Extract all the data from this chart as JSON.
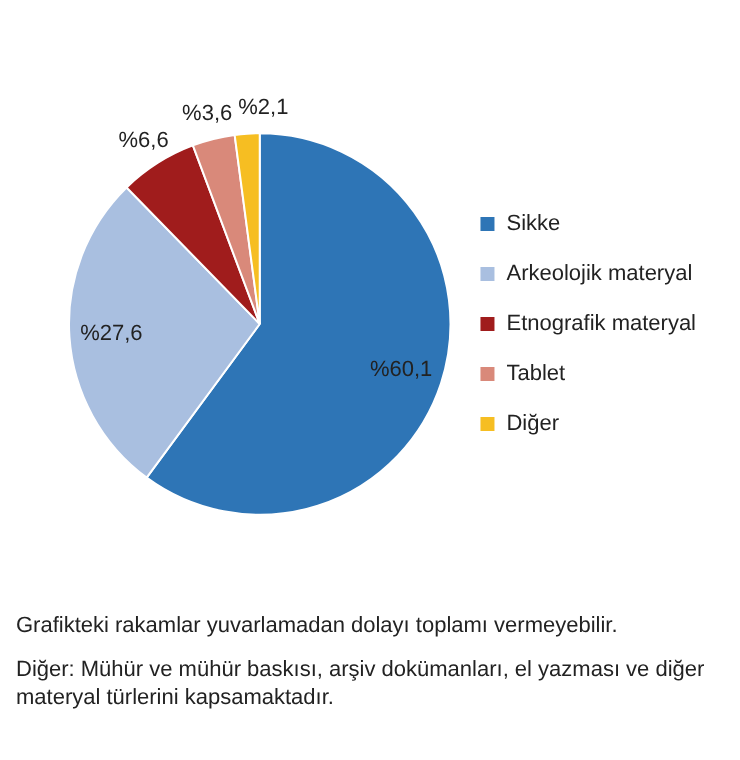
{
  "chart_data": {
    "type": "pie",
    "categories": [
      "Sikke",
      "Arkeolojik materyal",
      "Etnografik materyal",
      "Tablet",
      "Diğer"
    ],
    "values": [
      60.1,
      27.6,
      6.6,
      3.6,
      2.1
    ],
    "colors": [
      "#2e75b6",
      "#a9bfe0",
      "#a01c1c",
      "#d9897a",
      "#f6be22"
    ],
    "value_labels": [
      "%60,1",
      "%27,6",
      "%6,6",
      "%3,6",
      "%2,1"
    ],
    "legend": "right",
    "annotations": [
      "Grafikteki rakamlar yuvarlamadan dolayı toplamı vermeyebilir.",
      "Diğer: Mühür ve mühür baskısı, arşiv dokümanları, el yazması ve diğer materyal türlerini kapsamaktadır."
    ]
  }
}
